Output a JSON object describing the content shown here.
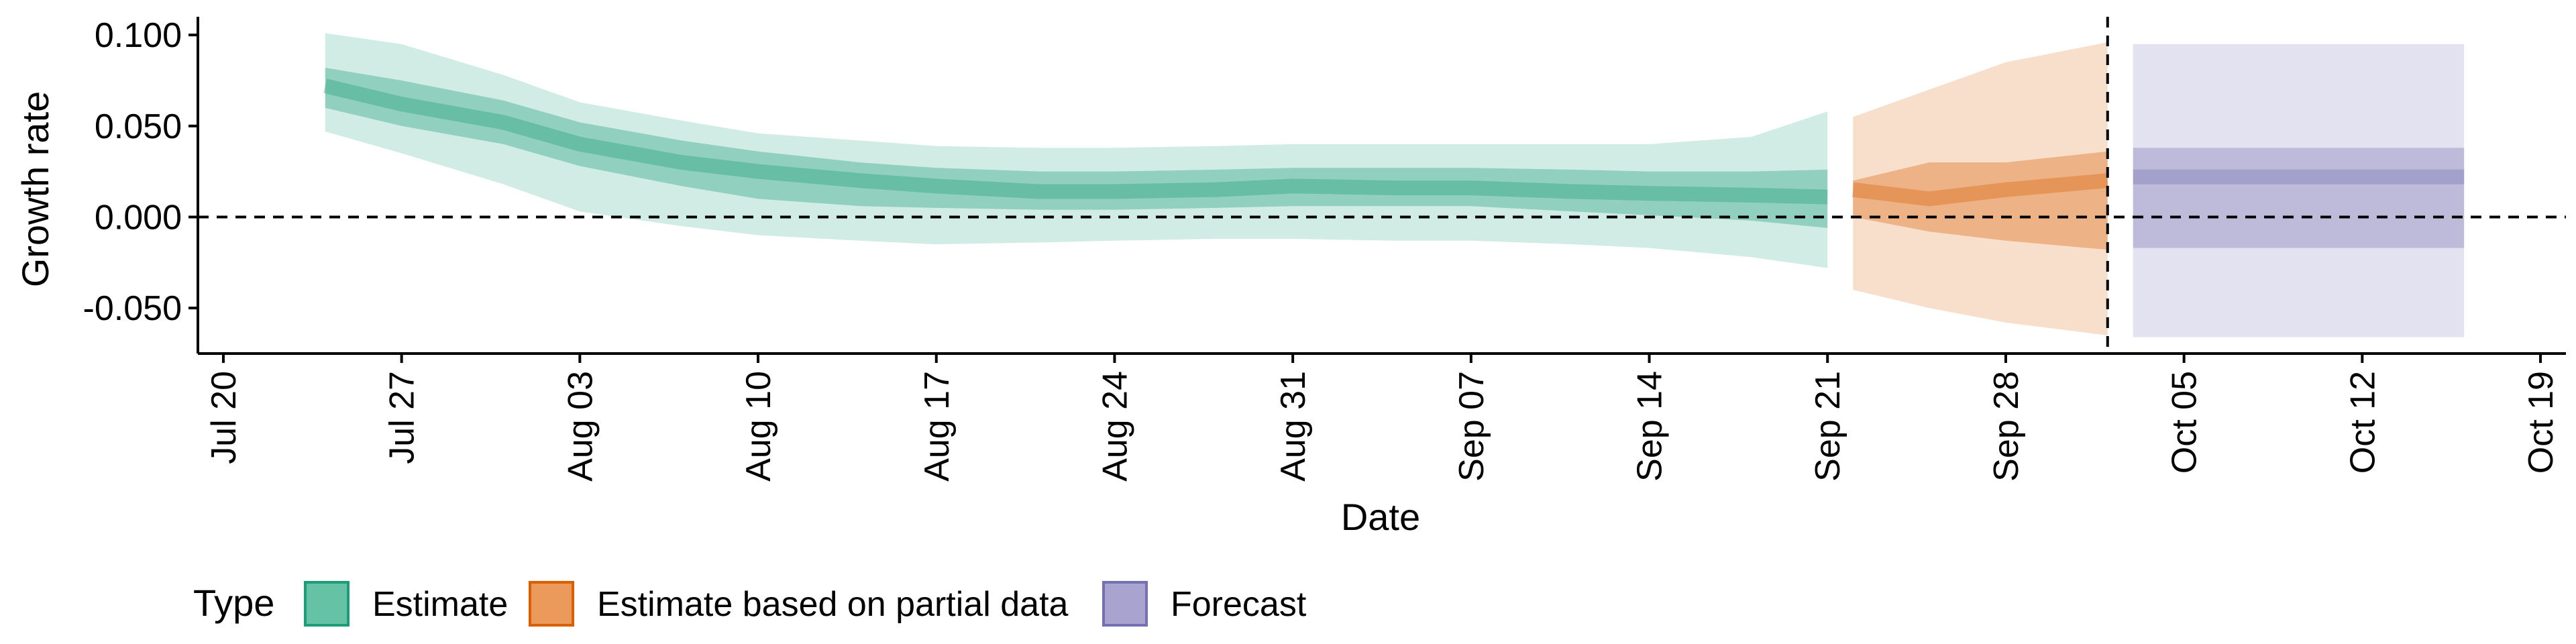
{
  "chart_data": {
    "type": "area",
    "xlabel": "Date",
    "ylabel": "Growth rate",
    "ylim": [
      -0.075,
      0.11
    ],
    "xlim": [
      "2020-07-19",
      "2020-10-20"
    ],
    "yticks": [
      {
        "value": 0.1,
        "label": "0.100"
      },
      {
        "value": 0.05,
        "label": "0.050"
      },
      {
        "value": 0.0,
        "label": "0.000"
      },
      {
        "value": -0.05,
        "label": "-0.050"
      }
    ],
    "xticks": [
      {
        "date": "2020-07-20",
        "label": "Jul 20"
      },
      {
        "date": "2020-07-27",
        "label": "Jul 27"
      },
      {
        "date": "2020-08-03",
        "label": "Aug 03"
      },
      {
        "date": "2020-08-10",
        "label": "Aug 10"
      },
      {
        "date": "2020-08-17",
        "label": "Aug 17"
      },
      {
        "date": "2020-08-24",
        "label": "Aug 24"
      },
      {
        "date": "2020-08-31",
        "label": "Aug 31"
      },
      {
        "date": "2020-09-07",
        "label": "Sep 07"
      },
      {
        "date": "2020-09-14",
        "label": "Sep 14"
      },
      {
        "date": "2020-09-21",
        "label": "Sep 21"
      },
      {
        "date": "2020-09-28",
        "label": "Sep 28"
      },
      {
        "date": "2020-10-05",
        "label": "Oct 05"
      },
      {
        "date": "2020-10-12",
        "label": "Oct 12"
      },
      {
        "date": "2020-10-19",
        "label": "Oct 19"
      }
    ],
    "hline": 0.0,
    "vline": "2020-10-02",
    "legend": {
      "title": "Type",
      "position": "bottom-left",
      "entries": [
        {
          "label": "Estimate",
          "fill": "#66c2a5",
          "stroke": "#1b9e77"
        },
        {
          "label": "Estimate based on partial data",
          "fill": "#ec9a5b",
          "stroke": "#d95f02"
        },
        {
          "label": "Forecast",
          "fill": "#a8a3cf",
          "stroke": "#7570b3"
        }
      ]
    },
    "colors": {
      "Estimate": "#1b9e77",
      "Estimate based on partial data": "#d95f02",
      "Forecast": "#7570b3"
    },
    "series": [
      {
        "name": "Estimate",
        "dates": [
          "2020-07-24",
          "2020-07-27",
          "2020-07-31",
          "2020-08-03",
          "2020-08-07",
          "2020-08-10",
          "2020-08-14",
          "2020-08-17",
          "2020-08-21",
          "2020-08-24",
          "2020-08-28",
          "2020-08-31",
          "2020-09-04",
          "2020-09-07",
          "2020-09-11",
          "2020-09-14",
          "2020-09-18",
          "2020-09-21"
        ],
        "median": [
          0.072,
          0.062,
          0.052,
          0.04,
          0.03,
          0.025,
          0.02,
          0.017,
          0.014,
          0.014,
          0.015,
          0.017,
          0.016,
          0.016,
          0.014,
          0.013,
          0.012,
          0.011
        ],
        "lower_50": [
          0.06,
          0.05,
          0.04,
          0.028,
          0.017,
          0.01,
          0.006,
          0.005,
          0.004,
          0.004,
          0.005,
          0.006,
          0.006,
          0.006,
          0.003,
          0.001,
          -0.002,
          -0.006
        ],
        "upper_50": [
          0.082,
          0.075,
          0.064,
          0.052,
          0.042,
          0.036,
          0.03,
          0.027,
          0.025,
          0.025,
          0.026,
          0.027,
          0.027,
          0.027,
          0.026,
          0.025,
          0.025,
          0.026
        ],
        "lower_90": [
          0.047,
          0.035,
          0.018,
          0.003,
          -0.005,
          -0.01,
          -0.013,
          -0.015,
          -0.014,
          -0.013,
          -0.012,
          -0.012,
          -0.013,
          -0.013,
          -0.015,
          -0.017,
          -0.022,
          -0.028
        ],
        "upper_90": [
          0.101,
          0.095,
          0.078,
          0.063,
          0.053,
          0.046,
          0.042,
          0.039,
          0.038,
          0.038,
          0.039,
          0.04,
          0.04,
          0.04,
          0.04,
          0.04,
          0.044,
          0.058
        ]
      },
      {
        "name": "Estimate based on partial data",
        "dates": [
          "2020-09-22",
          "2020-09-25",
          "2020-09-28",
          "2020-10-02"
        ],
        "median": [
          0.015,
          0.01,
          0.015,
          0.02
        ],
        "lower_50": [
          0.0,
          -0.008,
          -0.013,
          -0.018
        ],
        "upper_50": [
          0.02,
          0.03,
          0.03,
          0.036
        ],
        "lower_90": [
          -0.04,
          -0.05,
          -0.058,
          -0.065
        ],
        "upper_90": [
          0.055,
          0.07,
          0.085,
          0.096
        ]
      },
      {
        "name": "Forecast",
        "dates": [
          "2020-10-03",
          "2020-10-16"
        ],
        "median": [
          0.022,
          0.022
        ],
        "lower_50": [
          -0.017,
          -0.017
        ],
        "upper_50": [
          0.038,
          0.038
        ],
        "lower_90": [
          -0.066,
          -0.066
        ],
        "upper_90": [
          0.095,
          0.095
        ]
      }
    ]
  }
}
